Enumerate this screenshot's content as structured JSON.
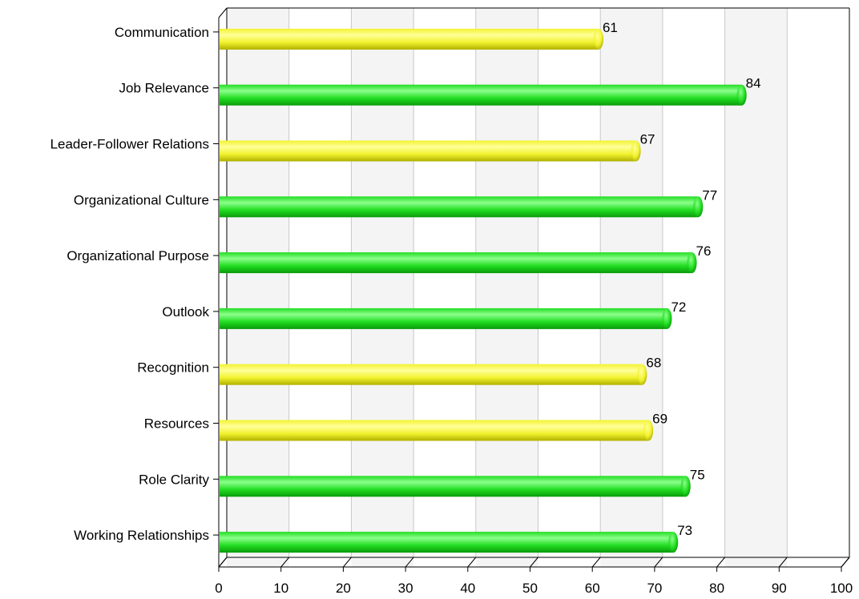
{
  "chart_data": {
    "type": "bar",
    "orientation": "horizontal",
    "categories": [
      "Communication",
      "Job Relevance",
      "Leader-Follower Relations",
      "Organizational Culture",
      "Organizational Purpose",
      "Outlook",
      "Recognition",
      "Resources",
      "Role Clarity",
      "Working Relationships"
    ],
    "values": [
      61,
      84,
      67,
      77,
      76,
      72,
      68,
      69,
      75,
      73
    ],
    "bar_colors": [
      "yellow",
      "green",
      "yellow",
      "green",
      "green",
      "green",
      "yellow",
      "yellow",
      "green",
      "green"
    ],
    "colors": {
      "green": {
        "light": "#8cff8c",
        "main": "#22dd22",
        "dark": "#0a9a0a"
      },
      "yellow": {
        "light": "#ffff9a",
        "main": "#f2f230",
        "dark": "#b0b000"
      }
    },
    "xlim": [
      0,
      100
    ],
    "xticks": [
      0,
      10,
      20,
      30,
      40,
      50,
      60,
      70,
      80,
      90,
      100
    ],
    "grid": true,
    "data_labels": true
  }
}
